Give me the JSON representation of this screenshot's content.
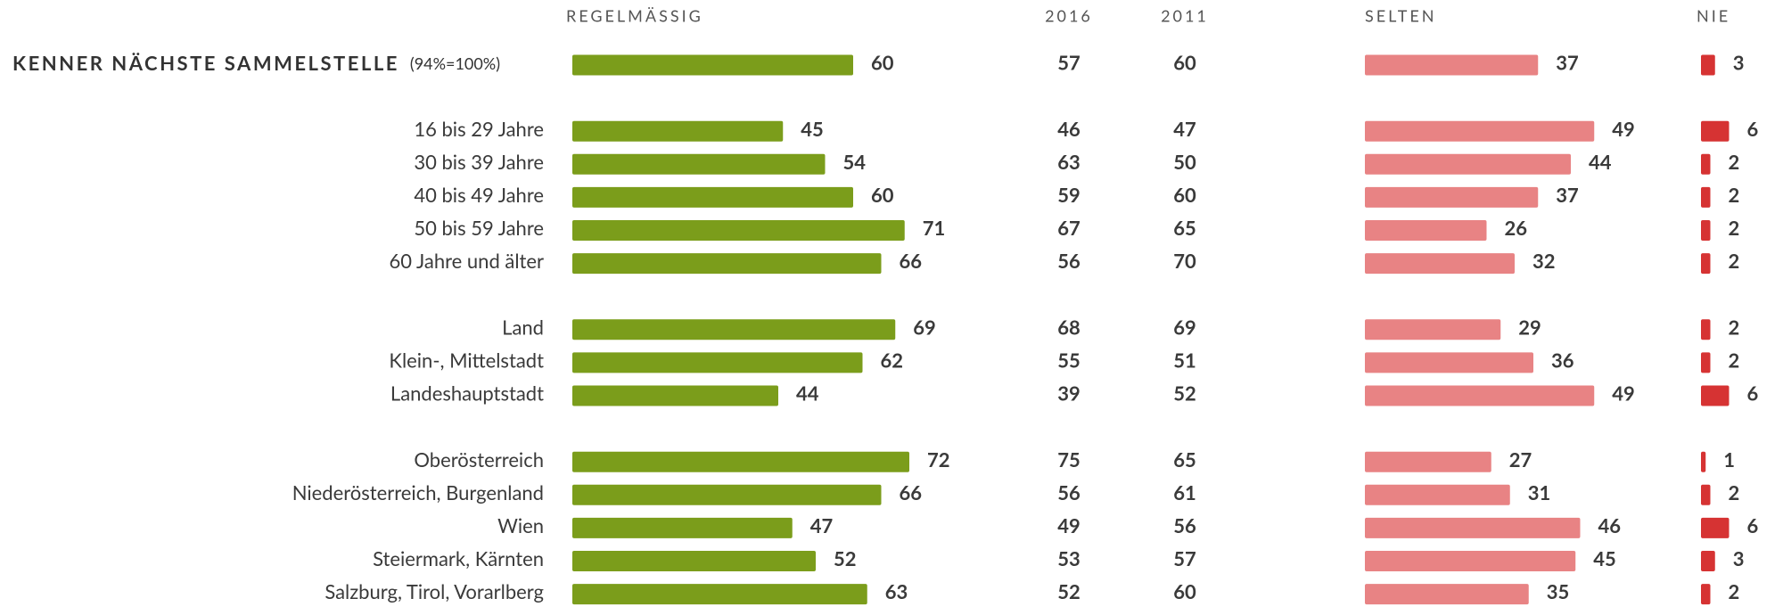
{
  "chart_data": {
    "type": "bar",
    "series": [
      {
        "name": "REGELMÄSSIG",
        "color": "#7b9d1b"
      },
      {
        "name": "2016"
      },
      {
        "name": "2011"
      },
      {
        "name": "SELTEN",
        "color": "#e88384"
      },
      {
        "name": "NIE",
        "color": "#d63333"
      }
    ],
    "groups": [
      {
        "rows": [
          {
            "label": "KENNER NÄCHSTE SAMMELSTELLE",
            "note": "(94%=100%)",
            "values": [
              60,
              57,
              60,
              37,
              3
            ]
          }
        ]
      },
      {
        "rows": [
          {
            "label": "16 bis 29 Jahre",
            "values": [
              45,
              46,
              47,
              49,
              6
            ]
          },
          {
            "label": "30 bis 39 Jahre",
            "values": [
              54,
              63,
              50,
              44,
              2
            ]
          },
          {
            "label": "40 bis 49 Jahre",
            "values": [
              60,
              59,
              60,
              37,
              2
            ]
          },
          {
            "label": "50 bis 59 Jahre",
            "values": [
              71,
              67,
              65,
              26,
              2
            ]
          },
          {
            "label": "60 Jahre und älter",
            "values": [
              66,
              56,
              70,
              32,
              2
            ]
          }
        ]
      },
      {
        "rows": [
          {
            "label": "Land",
            "values": [
              69,
              68,
              69,
              29,
              2
            ]
          },
          {
            "label": "Klein-, Mittelstadt",
            "values": [
              62,
              55,
              51,
              36,
              2
            ]
          },
          {
            "label": "Landeshauptstadt",
            "values": [
              44,
              39,
              52,
              49,
              6
            ]
          }
        ]
      },
      {
        "rows": [
          {
            "label": "Oberösterreich",
            "values": [
              72,
              75,
              65,
              27,
              1
            ]
          },
          {
            "label": "Niederösterreich, Burgenland",
            "values": [
              66,
              56,
              61,
              31,
              2
            ]
          },
          {
            "label": "Wien",
            "values": [
              47,
              49,
              56,
              46,
              6
            ]
          },
          {
            "label": "Steiermark, Kärnten",
            "values": [
              52,
              53,
              57,
              45,
              3
            ]
          },
          {
            "label": "Salzburg, Tirol,  Vorarlberg",
            "values": [
              63,
              52,
              60,
              35,
              2
            ]
          }
        ]
      }
    ]
  }
}
